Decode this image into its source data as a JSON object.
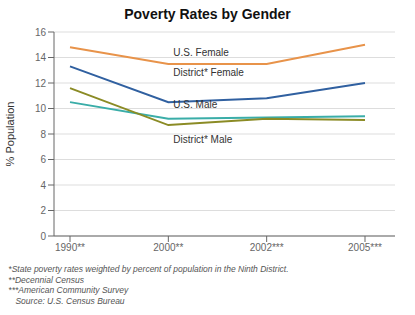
{
  "chart_data": {
    "type": "line",
    "title": "Poverty Rates by Gender",
    "ylabel": "% Population",
    "categories": [
      "1990**",
      "2000**",
      "2002***",
      "2005***"
    ],
    "series": [
      {
        "name": "U.S. Female",
        "color": "#E8934A",
        "values": [
          14.8,
          13.5,
          13.5,
          15.0
        ]
      },
      {
        "name": "District* Female",
        "color": "#3060A0",
        "values": [
          13.3,
          10.5,
          10.8,
          12.0
        ]
      },
      {
        "name": "U.S. Male",
        "color": "#3AADA8",
        "values": [
          10.5,
          9.2,
          9.3,
          9.4
        ]
      },
      {
        "name": "District* Male",
        "color": "#8B8B25",
        "values": [
          11.6,
          8.7,
          9.2,
          9.1
        ]
      }
    ],
    "ylim": [
      0,
      16
    ],
    "yticks": [
      0,
      2,
      4,
      6,
      8,
      10,
      12,
      14,
      16
    ],
    "grid": true,
    "annotations": [
      {
        "text": "U.S. Female",
        "x": "2000**",
        "y": 14.05
      },
      {
        "text": "District* Female",
        "x": "2000**",
        "y": 12.5
      },
      {
        "text": "U.S. Male",
        "x": "2000**",
        "y": 10.0
      },
      {
        "text": "District* Male",
        "x": "2000**",
        "y": 7.95
      }
    ],
    "footnotes": [
      " *State poverty rates weighted by percent of population in the Ninth District.",
      " **Decennial Census",
      " ***American Community Survey",
      "    Source: U.S. Census Bureau"
    ]
  }
}
